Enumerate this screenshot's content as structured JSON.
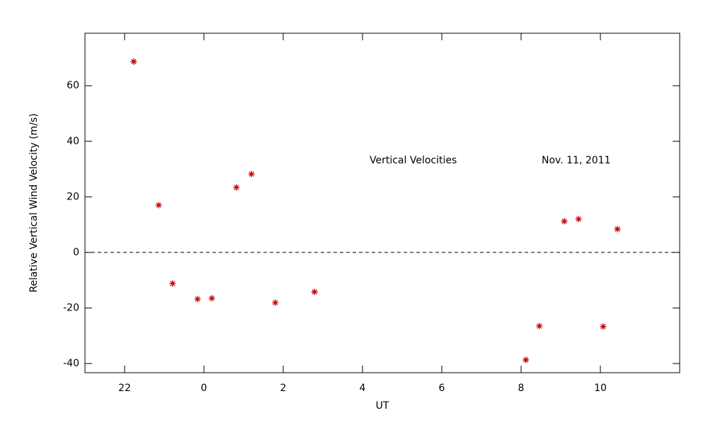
{
  "chart_data": {
    "type": "scatter",
    "xlabel": "UT",
    "ylabel": "Relative Vertical Wind Velocity (m/s)",
    "annotations": [
      "Vertical Velocities",
      "Nov. 11, 2011"
    ],
    "color": "#cc0000",
    "x": [
      -1.77,
      -1.14,
      -0.79,
      -0.16,
      0.2,
      0.82,
      1.2,
      1.8,
      2.79,
      8.12,
      8.46,
      9.09,
      9.45,
      10.07,
      10.43
    ],
    "values": [
      68.7,
      17.0,
      -11.2,
      -16.8,
      -16.5,
      23.4,
      28.2,
      -18.1,
      -14.2,
      -38.7,
      -26.5,
      11.2,
      12.0,
      -26.7,
      8.4
    ],
    "xlim": [
      -3,
      12
    ],
    "xticks": [
      {
        "value": -2,
        "label": "22"
      },
      0,
      2,
      4,
      6,
      8,
      10
    ],
    "ylim": [
      -43.3,
      78.9
    ],
    "yticks": [
      -40,
      -20,
      0,
      20,
      40,
      60
    ],
    "hline": 0
  }
}
